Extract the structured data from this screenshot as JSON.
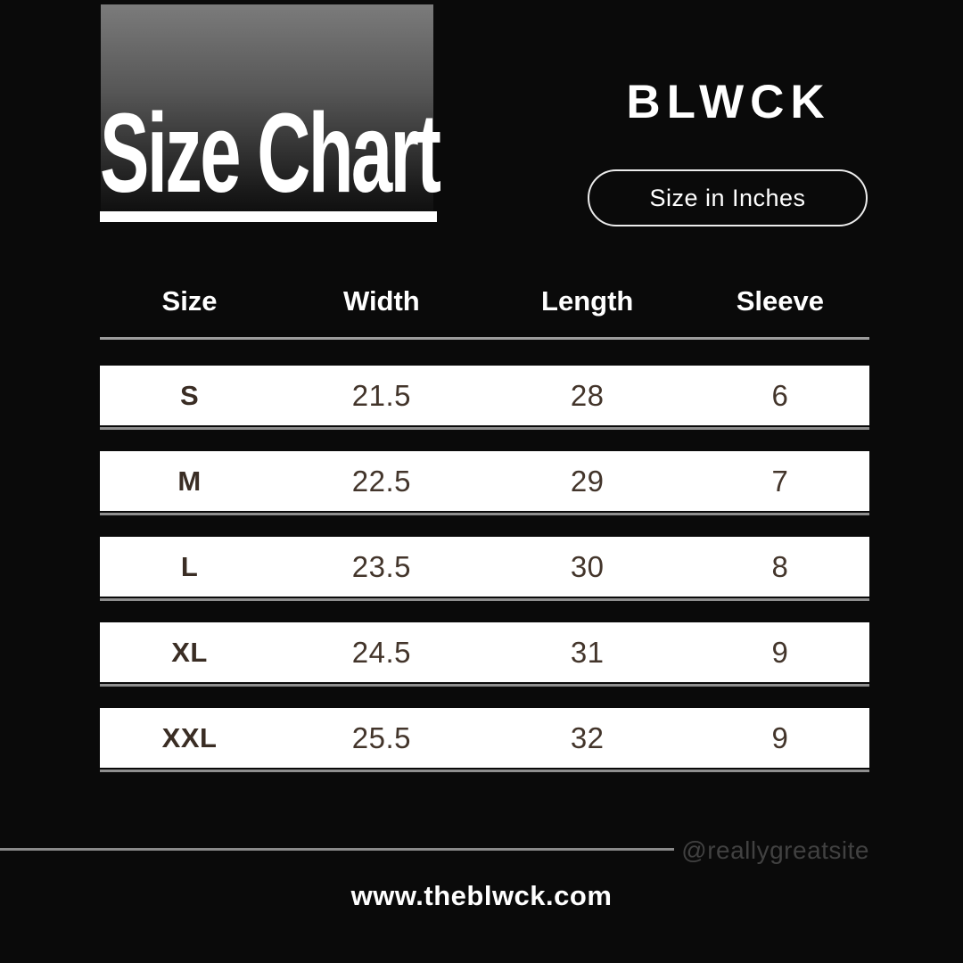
{
  "header": {
    "title": "Size Chart",
    "brand": "BLWCK",
    "unit_badge": "Size in Inches"
  },
  "table": {
    "columns": [
      "Size",
      "Width",
      "Length",
      "Sleeve"
    ],
    "rows": [
      {
        "size": "S",
        "width": "21.5",
        "length": "28",
        "sleeve": "6"
      },
      {
        "size": "M",
        "width": "22.5",
        "length": "29",
        "sleeve": "7"
      },
      {
        "size": "L",
        "width": "23.5",
        "length": "30",
        "sleeve": "8"
      },
      {
        "size": "XL",
        "width": "24.5",
        "length": "31",
        "sleeve": "9"
      },
      {
        "size": "XXL",
        "width": "25.5",
        "length": "32",
        "sleeve": "9"
      }
    ]
  },
  "footer": {
    "handle": "@reallygreatsite",
    "website": "www.theblwck.com"
  },
  "colors": {
    "background": "#0a0a0a",
    "row_bar": "#ffffff",
    "row_text": "#43352b",
    "header_text": "#ffffff",
    "gradient_top": "#7b7b7b",
    "rule_gray": "#9c9c9c",
    "handle_gray": "#414141"
  },
  "chart_data": {
    "type": "table",
    "title": "Size Chart",
    "subtitle": "Size in Inches",
    "columns": [
      "Size",
      "Width",
      "Length",
      "Sleeve"
    ],
    "rows": [
      [
        "S",
        21.5,
        28,
        6
      ],
      [
        "M",
        22.5,
        29,
        7
      ],
      [
        "L",
        23.5,
        30,
        8
      ],
      [
        "XL",
        24.5,
        31,
        9
      ],
      [
        "XXL",
        25.5,
        32,
        9
      ]
    ]
  }
}
